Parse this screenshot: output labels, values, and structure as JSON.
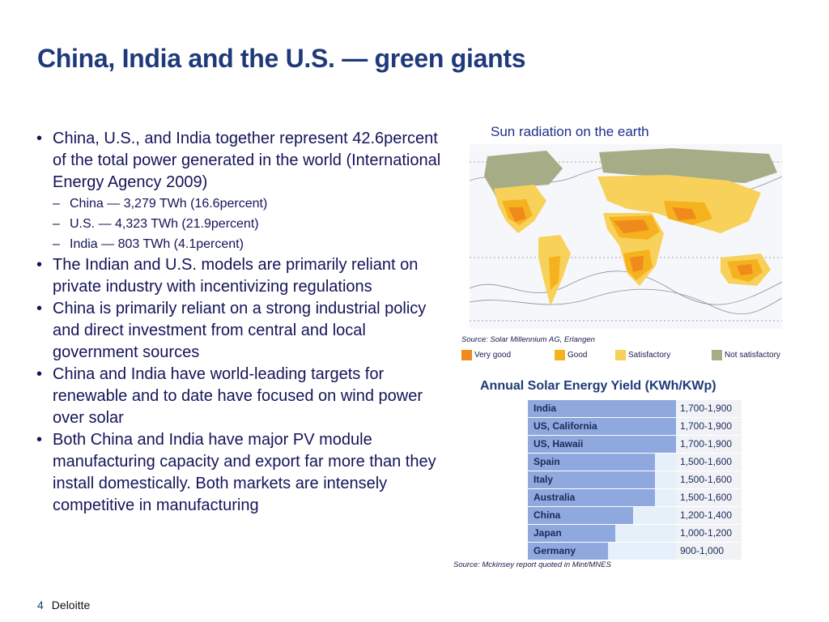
{
  "slide": {
    "title": "China, India and the U.S. — green giants"
  },
  "bullets": [
    {
      "level": 1,
      "text": "China, U.S., and India together represent 42.6percent of the total power generated in the world (International Energy Agency 2009)"
    },
    {
      "level": 2,
      "text": "China — 3,279 TWh (16.6percent)"
    },
    {
      "level": 2,
      "text": "U.S. — 4,323 TWh (21.9percent)"
    },
    {
      "level": 2,
      "text": "India — 803 TWh (4.1percent)"
    },
    {
      "level": 1,
      "text": "The Indian and U.S. models are primarily reliant on private industry with incentivizing regulations"
    },
    {
      "level": 1,
      "text": "China is primarily reliant on a strong industrial policy and direct investment from central and local government sources"
    },
    {
      "level": 1,
      "text": "China and India have world-leading targets for renewable and to date have focused on wind power over solar"
    },
    {
      "level": 1,
      "text": "Both China and India have major PV module manufacturing capacity and export far more than they install domestically. Both markets are intensely competitive in manufacturing"
    }
  ],
  "map": {
    "title": "Sun radiation on the earth",
    "source": "Source: Solar Millennium AG, Erlangen",
    "legend": [
      {
        "label": "Very good",
        "color": "#f08a1c"
      },
      {
        "label": "Good",
        "color": "#f5b21e"
      },
      {
        "label": "Satisfactory",
        "color": "#f7d159"
      },
      {
        "label": "Not satisfactory",
        "color": "#a6ad86"
      }
    ]
  },
  "yield_table": {
    "title": "Annual Solar Energy Yield (KWh/KWp)",
    "rows": [
      {
        "country": "India",
        "range": "1,700-1,900",
        "level": 1.0
      },
      {
        "country": "US, California",
        "range": "1,700-1,900",
        "level": 1.0
      },
      {
        "country": "US, Hawaii",
        "range": "1,700-1,900",
        "level": 1.0
      },
      {
        "country": "Spain",
        "range": "1,500-1,600",
        "level": 0.86
      },
      {
        "country": "Italy",
        "range": "1,500-1,600",
        "level": 0.86
      },
      {
        "country": "Australia",
        "range": "1,500-1,600",
        "level": 0.86
      },
      {
        "country": "China",
        "range": "1,200-1,400",
        "level": 0.71
      },
      {
        "country": "Japan",
        "range": "1,000-1,200",
        "level": 0.59
      },
      {
        "country": "Germany",
        "range": "900-1,000",
        "level": 0.54
      }
    ],
    "source": "Source: Mckinsey report quoted in Mint/MNES"
  },
  "footer": {
    "page": "4",
    "company": "Deloitte"
  }
}
